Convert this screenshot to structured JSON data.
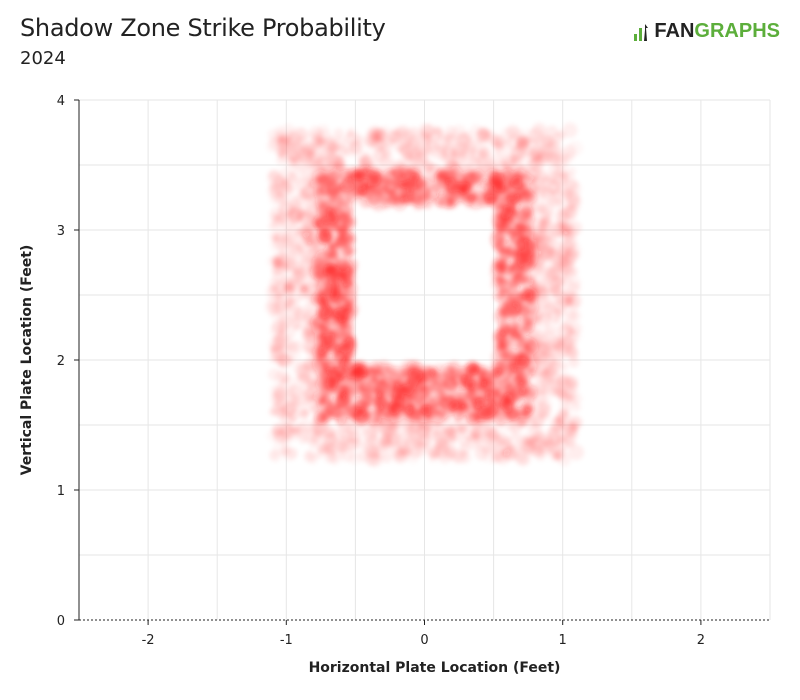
{
  "header": {
    "title": "Shadow Zone Strike Probability",
    "subtitle": "2024",
    "logo_prefix": "FAN",
    "logo_suffix": "GRAPHS"
  },
  "colors": {
    "point": "#ff1a1a",
    "grid": "#e6e6e6",
    "axis": "#222222",
    "logo_green": "#5cae3b"
  },
  "chart_data": {
    "type": "scatter",
    "title": "Shadow Zone Strike Probability",
    "subtitle": "2024",
    "xlabel": "Horizontal Plate Location (Feet)",
    "ylabel": "Vertical Plate Location (Feet)",
    "xlim": [
      -2.5,
      2.5
    ],
    "ylim": [
      0,
      4
    ],
    "x_ticks": [
      -2,
      -1,
      0,
      1,
      2
    ],
    "y_ticks": [
      0,
      1,
      2,
      3,
      4
    ],
    "grid": true,
    "shadow_zone": {
      "inner_box": {
        "x": [
          -0.53,
          0.53
        ],
        "y": [
          1.95,
          3.2
        ]
      },
      "strong_band": {
        "x": [
          -0.78,
          0.78
        ],
        "y": [
          1.55,
          3.45
        ]
      },
      "outer_band": {
        "x": [
          -1.05,
          1.05
        ],
        "y": [
          1.28,
          3.72
        ]
      }
    },
    "series": [
      {
        "name": "",
        "description_values": "strike probability density, high in inner band, low in outer band"
      }
    ]
  }
}
